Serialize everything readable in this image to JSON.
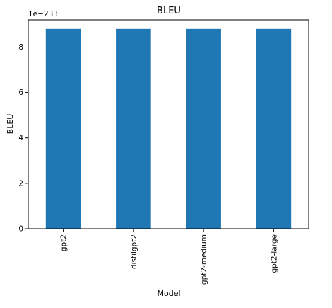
{
  "chart_data": {
    "type": "bar",
    "title": "BLEU",
    "xlabel": "Model",
    "ylabel": "BLEU",
    "scale_label": "1e−233",
    "categories": [
      "gpt2",
      "distilgpt2",
      "gpt2-medium",
      "gpt2-large"
    ],
    "values": [
      8.8,
      8.8,
      8.8,
      8.8
    ],
    "ylim": [
      0,
      9.2
    ],
    "yticks": [
      0,
      2,
      4,
      6,
      8
    ],
    "ytick_labels": [
      "0",
      "2",
      "4",
      "6",
      "8"
    ],
    "grid": false,
    "legend": "none",
    "bar_color": "#1f77b4"
  }
}
